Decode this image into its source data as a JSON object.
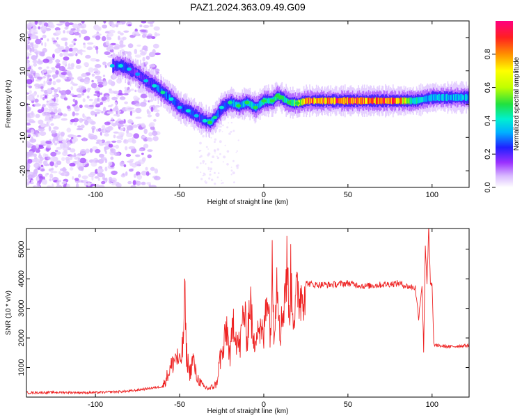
{
  "chart_data": [
    {
      "type": "heatmap",
      "title": "PAZ1.2024.363.09.49.G09",
      "xlabel": "Height of straight line (km)",
      "ylabel": "Frequency (Hz)",
      "xlim": [
        -141,
        122
      ],
      "ylim": [
        -25,
        25
      ],
      "xticks": [
        -100,
        -50,
        0,
        50,
        100
      ],
      "yticks": [
        20,
        10,
        0,
        -10,
        -20
      ],
      "colorbar": {
        "label": "Normalized spectral amplitude",
        "range": [
          0,
          1
        ],
        "ticks": [
          0.0,
          0.2,
          0.4,
          0.6,
          0.8
        ],
        "colormap": [
          "#ffffff",
          "#d8b8ff",
          "#9a30ff",
          "#2020ff",
          "#00b0ff",
          "#00f0d0",
          "#20e040",
          "#c0ff00",
          "#ffff00",
          "#ff9000",
          "#ff2020",
          "#ff0080"
        ]
      },
      "ridge": {
        "x": [
          -90,
          -85,
          -80,
          -75,
          -70,
          -65,
          -60,
          -55,
          -50,
          -45,
          -40,
          -35,
          -32,
          -29,
          -25,
          -20,
          -15,
          -10,
          -5,
          0,
          5,
          8,
          10,
          15,
          20,
          25,
          50,
          80,
          90,
          95,
          100,
          110,
          122
        ],
        "y": [
          11.5,
          11.5,
          10.5,
          9,
          7,
          5.5,
          3.5,
          1.5,
          -1,
          -2,
          -3.5,
          -5,
          -5.5,
          -4,
          -1,
          0.5,
          -0.5,
          0.5,
          -1,
          1,
          1,
          2.5,
          2,
          0.5,
          0.3,
          1,
          1,
          1,
          1,
          1.5,
          2,
          2,
          2
        ],
        "amplitude": [
          0.25,
          0.3,
          0.25,
          0.2,
          0.25,
          0.3,
          0.35,
          0.3,
          0.25,
          0.3,
          0.25,
          0.3,
          0.4,
          0.35,
          0.3,
          0.35,
          0.4,
          0.45,
          0.4,
          0.45,
          0.5,
          0.5,
          0.45,
          0.5,
          0.6,
          0.85,
          0.9,
          0.85,
          0.45,
          0.4,
          0.4,
          0.4,
          0.4
        ]
      }
    },
    {
      "type": "line",
      "title": "",
      "xlabel": "Height of straight line (km)",
      "ylabel": "SNR (10 * v/v)",
      "xlim": [
        -141,
        122
      ],
      "ylim": [
        0,
        5700
      ],
      "xticks": [
        -100,
        -50,
        0,
        50,
        100
      ],
      "yticks": [
        1000,
        2000,
        3000,
        4000,
        5000
      ],
      "series": [
        {
          "color": "#ee2222",
          "x": [
            -141,
            -120,
            -100,
            -80,
            -70,
            -60,
            -56,
            -52,
            -50,
            -48,
            -47,
            -46,
            -44,
            -42,
            -40,
            -36,
            -32,
            -28,
            -26,
            -24,
            -22,
            -20,
            -18,
            -16,
            -14,
            -12,
            -10,
            -8,
            -6,
            -4,
            -2,
            0,
            2,
            4,
            5,
            6,
            8,
            10,
            12,
            14,
            15,
            16,
            18,
            20,
            22,
            25,
            30,
            40,
            50,
            60,
            70,
            80,
            85,
            90,
            92,
            94,
            95,
            96,
            97,
            98,
            99,
            100,
            101,
            102,
            110,
            122
          ],
          "y": [
            150,
            160,
            150,
            200,
            280,
            360,
            900,
            1400,
            1100,
            1700,
            3400,
            1500,
            800,
            1300,
            700,
            350,
            280,
            450,
            1300,
            1500,
            2400,
            1300,
            2700,
            1900,
            1700,
            3000,
            2000,
            3300,
            1600,
            2600,
            2200,
            2000,
            3800,
            2200,
            4200,
            2500,
            4100,
            2200,
            3300,
            4500,
            2700,
            4000,
            2700,
            3600,
            3400,
            3850,
            3800,
            3800,
            3850,
            3750,
            3800,
            3850,
            3750,
            3700,
            2700,
            3800,
            1600,
            5100,
            3900,
            5700,
            3800,
            3800,
            1800,
            1750,
            1700,
            1750
          ]
        }
      ]
    }
  ]
}
